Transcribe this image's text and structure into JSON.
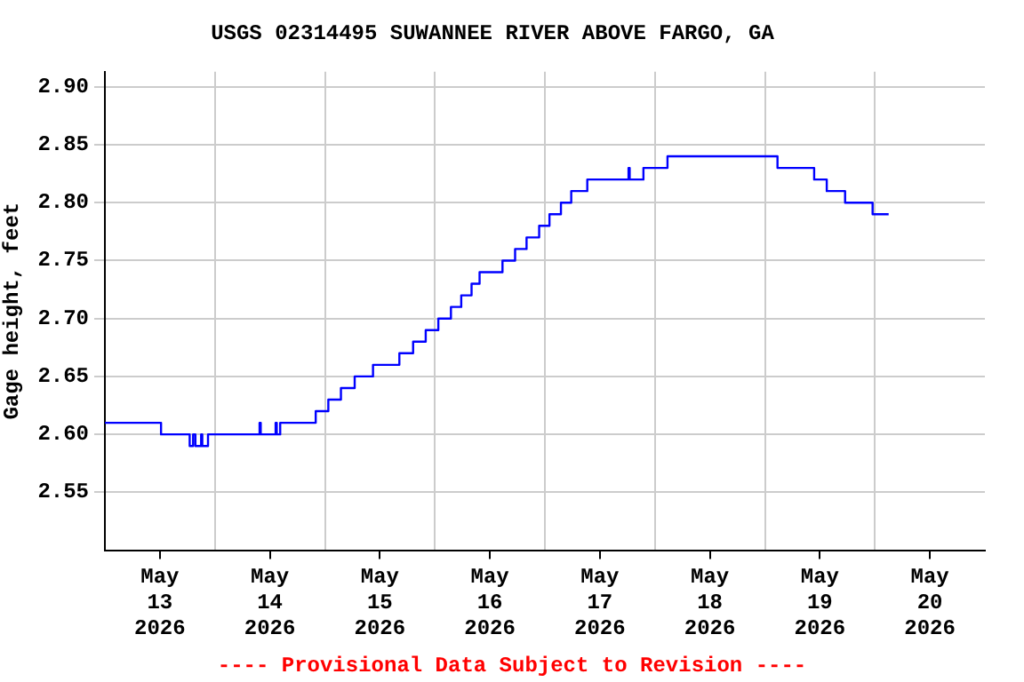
{
  "chart_data": {
    "type": "step",
    "title": "USGS 02314495 SUWANNEE RIVER ABOVE FARGO, GA",
    "ylabel": "Gage height, feet",
    "annotations": [
      "---- Provisional Data Subject to Revision ----"
    ],
    "x": [
      "2026-05-13T00:00",
      "2026-05-13T12:15",
      "2026-05-13T18:30",
      "2026-05-13T19:15",
      "2026-05-13T19:45",
      "2026-05-13T21:00",
      "2026-05-13T21:15",
      "2026-05-13T22:30",
      "2026-05-14T09:45",
      "2026-05-14T10:00",
      "2026-05-14T13:15",
      "2026-05-14T13:30",
      "2026-05-14T14:15",
      "2026-05-14T22:00",
      "2026-05-15T00:45",
      "2026-05-15T03:30",
      "2026-05-15T06:30",
      "2026-05-15T10:30",
      "2026-05-15T16:15",
      "2026-05-15T19:15",
      "2026-05-15T22:00",
      "2026-05-16T00:45",
      "2026-05-16T03:30",
      "2026-05-16T05:45",
      "2026-05-16T08:00",
      "2026-05-16T09:45",
      "2026-05-16T14:45",
      "2026-05-16T17:30",
      "2026-05-16T20:00",
      "2026-05-16T22:45",
      "2026-05-17T01:00",
      "2026-05-17T03:30",
      "2026-05-17T05:45",
      "2026-05-17T09:15",
      "2026-05-17T18:15",
      "2026-05-17T18:30",
      "2026-05-17T21:30",
      "2026-05-18T02:45",
      "2026-05-19T02:45",
      "2026-05-19T10:45",
      "2026-05-19T13:30",
      "2026-05-19T17:30",
      "2026-05-19T23:30",
      "2026-05-20T03:00"
    ],
    "series": [
      {
        "color": "#0000ff",
        "values": [
          2.61,
          2.6,
          2.59,
          2.6,
          2.59,
          2.6,
          2.59,
          2.6,
          2.61,
          2.6,
          2.61,
          2.6,
          2.61,
          2.62,
          2.63,
          2.64,
          2.65,
          2.66,
          2.67,
          2.68,
          2.69,
          2.7,
          2.71,
          2.72,
          2.73,
          2.74,
          2.75,
          2.76,
          2.77,
          2.78,
          2.79,
          2.8,
          2.81,
          2.82,
          2.83,
          2.82,
          2.83,
          2.84,
          2.83,
          2.82,
          2.81,
          2.8,
          2.79,
          2.79
        ]
      }
    ],
    "xlim": [
      "2026-05-13T00:00",
      "2026-05-21T00:00"
    ],
    "xticks": [
      {
        "value": "2026-05-13T12:00",
        "label": "May 13 2026"
      },
      {
        "value": "2026-05-14T00:00",
        "label": null
      },
      {
        "value": "2026-05-14T12:00",
        "label": "May 14 2026"
      },
      {
        "value": "2026-05-15T00:00",
        "label": null
      },
      {
        "value": "2026-05-15T12:00",
        "label": "May 15 2026"
      },
      {
        "value": "2026-05-16T00:00",
        "label": null
      },
      {
        "value": "2026-05-16T12:00",
        "label": "May 16 2026"
      },
      {
        "value": "2026-05-17T00:00",
        "label": null
      },
      {
        "value": "2026-05-17T12:00",
        "label": "May 17 2026"
      },
      {
        "value": "2026-05-18T00:00",
        "label": null
      },
      {
        "value": "2026-05-18T12:00",
        "label": "May 18 2026"
      },
      {
        "value": "2026-05-19T00:00",
        "label": null
      },
      {
        "value": "2026-05-19T12:00",
        "label": "May 19 2026"
      },
      {
        "value": "2026-05-20T00:00",
        "label": null
      },
      {
        "value": "2026-05-20T12:00",
        "label": "May 20 2026"
      }
    ],
    "ylim": [
      2.5,
      2.913
    ],
    "yticks": [
      {
        "value": 2.55,
        "label": "2.55"
      },
      {
        "value": 2.6,
        "label": "2.60"
      },
      {
        "value": 2.65,
        "label": "2.65"
      },
      {
        "value": 2.7,
        "label": "2.70"
      },
      {
        "value": 2.75,
        "label": "2.75"
      },
      {
        "value": 2.8,
        "label": "2.80"
      },
      {
        "value": 2.85,
        "label": "2.85"
      },
      {
        "value": 2.9,
        "label": "2.90"
      }
    ],
    "grid": true,
    "legend": false,
    "marker": "none",
    "line_style": "solid"
  }
}
